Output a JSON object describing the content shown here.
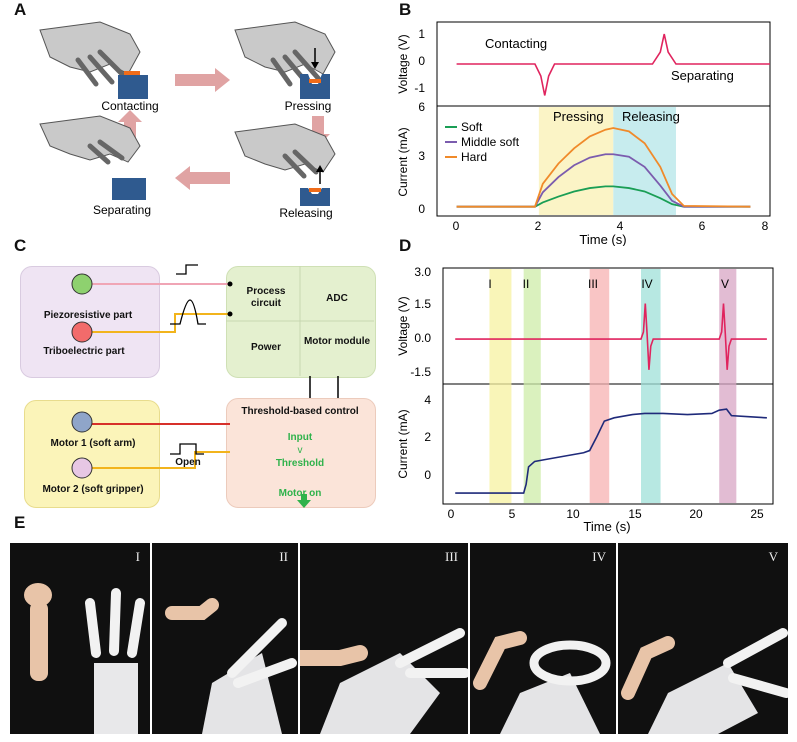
{
  "panels": {
    "a": "A",
    "b": "B",
    "c": "C",
    "d": "D",
    "e": "E"
  },
  "panel_a": {
    "contacting": "Contacting",
    "pressing": "Pressing",
    "releasing": "Releasing",
    "separating": "Separating",
    "colors": {
      "block": "#2f5a8f",
      "arrow": "#e0a3a3",
      "contact": "#f06c1a",
      "hand": "#c9c9c9"
    }
  },
  "panel_b": {
    "voltage_axis_label": "Voltage (V)",
    "current_axis_label": "Current (mA)",
    "x_axis_label": "Time (s)",
    "annot_contacting": "Contacting",
    "annot_separating": "Separating",
    "annot_pressing": "Pressing",
    "annot_releasing": "Releasing",
    "legend": [
      "Soft",
      "Middle soft",
      "Hard"
    ],
    "voltage_ticks": [
      "1",
      "0",
      "-1"
    ],
    "current_ticks": [
      "6",
      "3",
      "0"
    ],
    "x_ticks": [
      "0",
      "2",
      "4",
      "6",
      "8"
    ]
  },
  "panel_c": {
    "piezo": "Piezoresistive part",
    "tribo": "Triboelectric part",
    "process": "Process circuit",
    "adc": "ADC",
    "power": "Power",
    "motor_module": "Motor module",
    "threshold_title": "Threshold-based control",
    "input": "Input",
    "gt": "v",
    "threshold": "Threshold",
    "motor_on": "Motor on",
    "motor1": "Motor 1 (soft arm)",
    "motor2": "Motor 2 (soft gripper)",
    "open": "Open"
  },
  "panel_d": {
    "voltage_axis_label": "Voltage (V)",
    "current_axis_label": "Current (mA)",
    "x_axis_label": "Time (s)",
    "regions": [
      "I",
      "II",
      "III",
      "IV",
      "V"
    ],
    "voltage_ticks": [
      "3.0",
      "1.5",
      "0.0",
      "-1.5"
    ],
    "current_ticks": [
      "4",
      "2",
      "0"
    ],
    "x_ticks": [
      "0",
      "5",
      "10",
      "15",
      "20",
      "25"
    ]
  },
  "panel_e": {
    "labels": [
      "I",
      "II",
      "III",
      "IV",
      "V"
    ]
  },
  "chart_data": [
    {
      "type": "line",
      "title": "",
      "xlabel": "",
      "ylabel": "Voltage (V)",
      "xlim": [
        -0.5,
        8
      ],
      "ylim": [
        -1.4,
        1.4
      ],
      "series": [
        {
          "name": "",
          "color": "#e0245e",
          "x": [
            0,
            2,
            2.15,
            2.25,
            2.35,
            2.5,
            5.0,
            5.2,
            5.3,
            5.4,
            5.6,
            8
          ],
          "values": [
            0,
            0,
            -0.4,
            -1.05,
            -0.4,
            0,
            0,
            0.4,
            1.0,
            0.4,
            0,
            0
          ]
        }
      ]
    },
    {
      "type": "line",
      "title": "",
      "xlabel": "Time (s)",
      "ylabel": "Current (mA)",
      "xlim": [
        -0.5,
        8
      ],
      "ylim": [
        -0.5,
        6
      ],
      "shaded_regions": [
        {
          "label": "Pressing",
          "from": 2.1,
          "to": 4.0,
          "color": "#fbf4c6"
        },
        {
          "label": "Releasing",
          "from": 4.0,
          "to": 5.6,
          "color": "#c7ecee"
        }
      ],
      "x": [
        0,
        2.0,
        2.2,
        2.6,
        3.0,
        3.4,
        3.8,
        4.0,
        4.4,
        4.8,
        5.2,
        5.5,
        5.8,
        7.5
      ],
      "series": [
        {
          "name": "Soft",
          "color": "#1a9e55",
          "values": [
            0.05,
            0.05,
            0.3,
            0.65,
            0.95,
            1.15,
            1.25,
            1.25,
            1.15,
            0.95,
            0.55,
            0.2,
            0.05,
            0.05
          ]
        },
        {
          "name": "Middle soft",
          "color": "#7b5cae",
          "values": [
            0.05,
            0.05,
            0.9,
            1.8,
            2.5,
            2.95,
            3.15,
            3.15,
            3.0,
            2.4,
            1.3,
            0.4,
            0.05,
            0.05
          ]
        },
        {
          "name": "Hard",
          "color": "#f08a2a",
          "values": [
            0.05,
            0.05,
            1.4,
            2.6,
            3.5,
            4.2,
            4.6,
            4.7,
            4.5,
            3.8,
            2.4,
            0.8,
            0.1,
            0.05
          ]
        }
      ]
    },
    {
      "type": "line",
      "title": "",
      "xlabel": "",
      "ylabel": "Voltage (V)",
      "xlim": [
        -1,
        26
      ],
      "ylim": [
        -1.9,
        3.0
      ],
      "shaded_regions": [
        {
          "label": "I",
          "from": 2.8,
          "to": 4.6,
          "color": "#f7f2a0"
        },
        {
          "label": "II",
          "from": 5.6,
          "to": 7.0,
          "color": "#cdeca8"
        },
        {
          "label": "III",
          "from": 11.0,
          "to": 12.6,
          "color": "#f7b1b1"
        },
        {
          "label": "IV",
          "from": 15.2,
          "to": 16.8,
          "color": "#9fe0d8"
        },
        {
          "label": "V",
          "from": 21.6,
          "to": 23.0,
          "color": "#d8a5c4"
        }
      ],
      "series": [
        {
          "name": "",
          "color": "#e0245e",
          "x": [
            0,
            15.2,
            15.4,
            15.55,
            15.7,
            15.85,
            16.0,
            16.2,
            21.6,
            21.8,
            21.95,
            22.1,
            22.25,
            22.4,
            22.6,
            25.5
          ],
          "values": [
            0,
            0,
            0.3,
            1.5,
            0.2,
            -1.3,
            -0.3,
            0,
            0,
            0.3,
            1.5,
            0.2,
            -1.3,
            -0.3,
            0,
            0
          ]
        }
      ]
    },
    {
      "type": "line",
      "title": "",
      "xlabel": "Time (s)",
      "ylabel": "Current (mA)",
      "xlim": [
        -1,
        26
      ],
      "ylim": [
        -0.5,
        5
      ],
      "series": [
        {
          "name": "",
          "color": "#1f2a7a",
          "x": [
            0,
            5.6,
            5.8,
            6.0,
            6.5,
            7.5,
            9,
            10.5,
            11.0,
            11.6,
            12.2,
            13,
            14.5,
            15.5,
            17,
            19,
            21,
            21.6,
            22.2,
            22.6,
            24,
            25.5
          ],
          "values": [
            0,
            0,
            0.4,
            1.2,
            1.45,
            1.55,
            1.7,
            1.85,
            1.95,
            2.6,
            3.3,
            3.45,
            3.6,
            3.65,
            3.65,
            3.6,
            3.65,
            3.8,
            3.85,
            3.55,
            3.5,
            3.45
          ]
        }
      ]
    }
  ]
}
